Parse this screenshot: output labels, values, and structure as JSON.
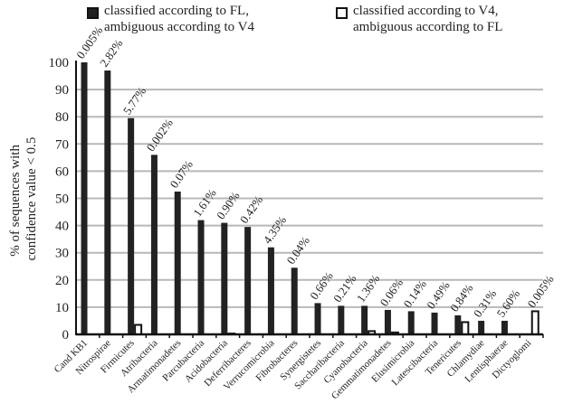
{
  "chart_data": {
    "type": "bar",
    "title": "",
    "xlabel": "",
    "ylabel": "% of sequences with confidence value < 0.5",
    "ylabel_lines": [
      "% of sequences with",
      "confidence value < 0.5"
    ],
    "ylim": [
      0,
      100
    ],
    "yticks": [
      0,
      10,
      20,
      30,
      40,
      50,
      60,
      70,
      80,
      90,
      100
    ],
    "grid": true,
    "legend_placement": "top",
    "categories": [
      "Cand KB1",
      "Nitrospirae",
      "Firmicutes",
      "Atribacteria",
      "Armatimonadetes",
      "Parcubacteria",
      "Acidobacteria",
      "Deferribacteres",
      "Verrucomicrobia",
      "Fibrobacteres",
      "Synergistetes",
      "Saccharibacteria",
      "Cyanobacteria",
      "Gemmatimonadetes",
      "Elusimicrobia",
      "Latescibacteria",
      "Tenericutes",
      "Chlamydiae",
      "Lentisphaerae",
      "Dictyoglomi"
    ],
    "series": [
      {
        "name": "classified according to FL, ambiguous according to V4",
        "legend_lines": [
          "classified according to FL,",
          "ambiguous according to V4"
        ],
        "color": "#222222",
        "values": [
          100,
          97,
          79.5,
          66,
          52.5,
          42,
          41,
          39.5,
          32,
          24.5,
          11.5,
          10.5,
          10.5,
          9,
          8.5,
          8,
          7,
          5,
          5,
          0
        ]
      },
      {
        "name": "classified according to V4, ambiguous according to FL",
        "legend_lines": [
          "classified according to V4,",
          "ambiguous according to FL"
        ],
        "color": "#ffffff",
        "values": [
          0,
          0,
          3.5,
          0,
          0,
          0,
          0.3,
          0,
          0,
          0,
          0,
          0,
          1.2,
          0.7,
          0,
          0,
          4.5,
          0,
          0,
          8.5
        ]
      }
    ],
    "data_labels": [
      "0.005%",
      "2.82%",
      "5.77%",
      "0.002%",
      "0.07%",
      "1.61%",
      "0.90%",
      "0.42%",
      "4.35%",
      "0.04%",
      "0.66%",
      "0.21%",
      "1.36%",
      "0.06%",
      "0.14%",
      "0.49%",
      "0.84%",
      "0.31%",
      "5.60%",
      "0.005%"
    ]
  }
}
